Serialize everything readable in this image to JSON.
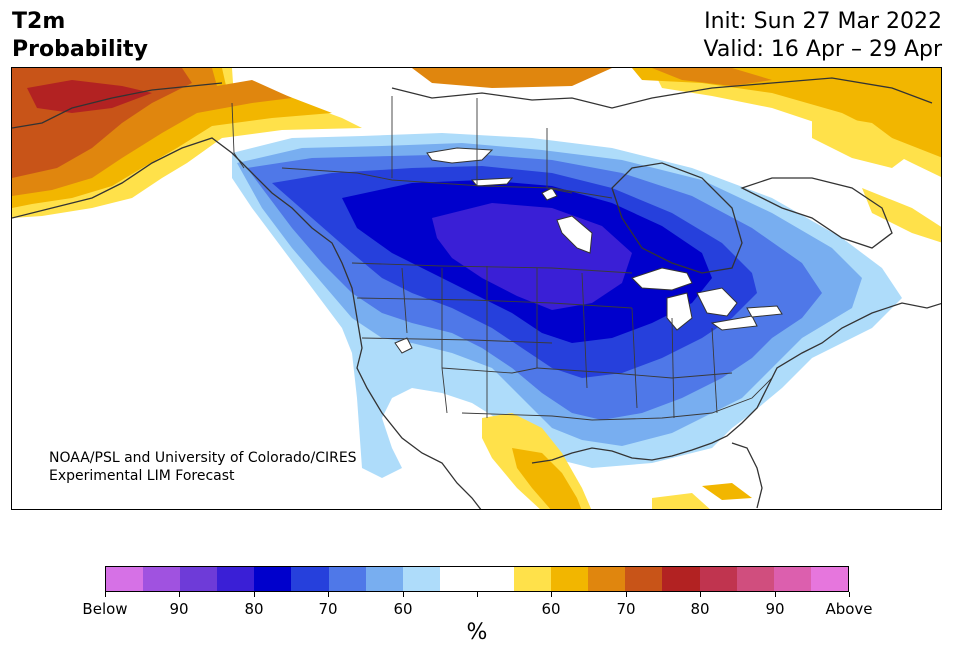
{
  "header": {
    "title_line1": "T2m",
    "title_line2": "Probability",
    "init": "Init: Sun 27 Mar 2022",
    "valid": "Valid: 16 Apr – 29 Apr"
  },
  "credit": {
    "line1": "NOAA/PSL and University of Colorado/CIRES",
    "line2": "Experimental LIM Forecast"
  },
  "colorbar": {
    "colors": [
      "#d671e6",
      "#a052e0",
      "#6e3bd8",
      "#3a1fd6",
      "#0000cc",
      "#2640dc",
      "#4f78e8",
      "#78aef0",
      "#aedcfa",
      "#ffffff",
      "#ffffff",
      "#ffe14a",
      "#f2b600",
      "#e0860e",
      "#c85418",
      "#b22222",
      "#c0344f",
      "#d04e7e",
      "#dc5fae",
      "#e676dd"
    ],
    "tick_labels": [
      "Below",
      "90",
      "80",
      "70",
      "60",
      "",
      "60",
      "70",
      "80",
      "90",
      "Above"
    ],
    "unit": "%"
  },
  "map": {
    "region": "North America",
    "cold_colors": [
      "#aedcfa",
      "#78aef0",
      "#4f78e8",
      "#2640dc",
      "#0000cc",
      "#3a1fd6"
    ],
    "warm_colors": [
      "#ffe14a",
      "#f2b600",
      "#e0860e",
      "#c85418",
      "#b22222"
    ]
  }
}
